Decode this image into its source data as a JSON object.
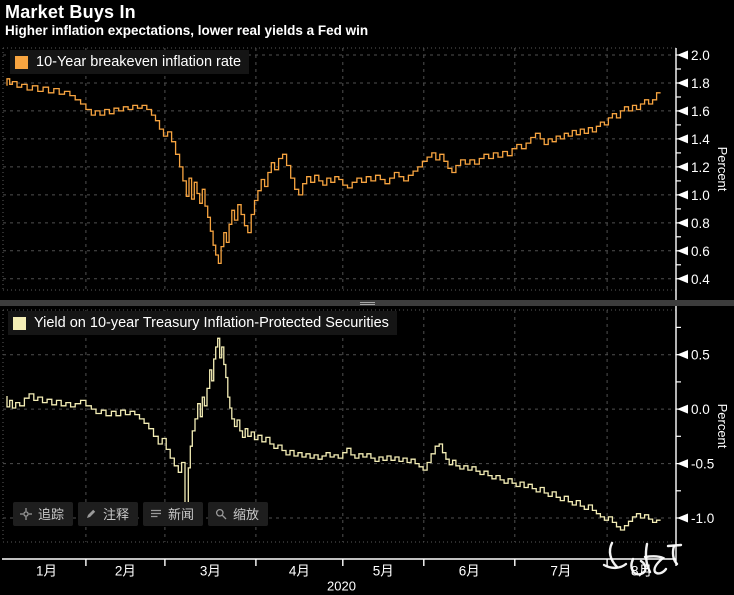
{
  "header": {
    "title": "Market Buys In",
    "subtitle": "Higher inflation expectations, lower real yields a Fed win"
  },
  "toolbar": {
    "items": [
      {
        "icon": "crosshair-icon",
        "label": "追踪"
      },
      {
        "icon": "pencil-icon",
        "label": "注释"
      },
      {
        "icon": "news-lines-icon",
        "label": "新闻"
      },
      {
        "icon": "magnifier-icon",
        "label": "缩放"
      }
    ]
  },
  "x_axis": {
    "month_labels": [
      "1月",
      "2月",
      "3月",
      "4月",
      "5月",
      "6月",
      "7月",
      "8月"
    ],
    "year_label": "2020",
    "month_boundaries_frac": [
      0.118,
      0.236,
      0.372,
      0.502,
      0.623,
      0.759,
      0.897
    ]
  },
  "colors": {
    "breakeven_line": "#F7A440",
    "tips_line": "#F3EDB5",
    "grid": "#4f4f4f",
    "axis": "#ffffff",
    "background": "#000000"
  },
  "annotation": {
    "color": "#ffffff",
    "paths": [
      "M612,543 C608,551 610,560 617,567",
      "M604,565 C611,569 620,569 626,564",
      "M633,559 C629,568 633,576 641,574 C647,572 647,565 641,561",
      "M647,544 C645,554 646,564 650,572",
      "M645,557 C652,556 659,556 663,558 C657,563 653,568 655,572 C658,575 663,573 666,569",
      "M668,546 L681,545",
      "M674,546 C672,553 673,560 677,564"
    ]
  },
  "chart_data": [
    {
      "type": "line",
      "series_name": "10-Year breakeven inflation rate",
      "color": "#F7A440",
      "ylabel": "Percent",
      "ylim": [
        0.32,
        2.05
      ],
      "yticks": [
        0.4,
        0.6,
        0.8,
        1.0,
        1.2,
        1.4,
        1.6,
        1.8,
        2.0
      ],
      "ytick_minor_step": 0.1,
      "x_months": "Jan-Aug 2020",
      "points": [
        [
          0.0,
          1.78
        ],
        [
          0.004,
          1.83
        ],
        [
          0.008,
          1.79
        ],
        [
          0.015,
          1.81
        ],
        [
          0.022,
          1.77
        ],
        [
          0.03,
          1.79
        ],
        [
          0.038,
          1.75
        ],
        [
          0.046,
          1.78
        ],
        [
          0.054,
          1.74
        ],
        [
          0.062,
          1.77
        ],
        [
          0.07,
          1.73
        ],
        [
          0.078,
          1.76
        ],
        [
          0.086,
          1.72
        ],
        [
          0.094,
          1.74
        ],
        [
          0.102,
          1.71
        ],
        [
          0.11,
          1.68
        ],
        [
          0.118,
          1.65
        ],
        [
          0.126,
          1.61
        ],
        [
          0.132,
          1.57
        ],
        [
          0.139,
          1.6
        ],
        [
          0.146,
          1.57
        ],
        [
          0.153,
          1.61
        ],
        [
          0.16,
          1.58
        ],
        [
          0.167,
          1.62
        ],
        [
          0.174,
          1.6
        ],
        [
          0.181,
          1.63
        ],
        [
          0.188,
          1.61
        ],
        [
          0.195,
          1.64
        ],
        [
          0.202,
          1.62
        ],
        [
          0.209,
          1.64
        ],
        [
          0.216,
          1.61
        ],
        [
          0.222,
          1.57
        ],
        [
          0.228,
          1.53
        ],
        [
          0.234,
          1.47
        ],
        [
          0.24,
          1.42
        ],
        [
          0.246,
          1.45
        ],
        [
          0.252,
          1.38
        ],
        [
          0.258,
          1.29
        ],
        [
          0.263,
          1.2
        ],
        [
          0.268,
          1.1
        ],
        [
          0.272,
          0.99
        ],
        [
          0.276,
          1.12
        ],
        [
          0.28,
          0.97
        ],
        [
          0.284,
          1.09
        ],
        [
          0.288,
          1.01
        ],
        [
          0.292,
          0.94
        ],
        [
          0.296,
          1.04
        ],
        [
          0.3,
          0.92
        ],
        [
          0.304,
          0.84
        ],
        [
          0.308,
          0.74
        ],
        [
          0.312,
          0.64
        ],
        [
          0.316,
          0.57
        ],
        [
          0.32,
          0.51
        ],
        [
          0.324,
          0.63
        ],
        [
          0.328,
          0.73
        ],
        [
          0.332,
          0.66
        ],
        [
          0.336,
          0.79
        ],
        [
          0.34,
          0.89
        ],
        [
          0.345,
          0.82
        ],
        [
          0.35,
          0.93
        ],
        [
          0.355,
          0.86
        ],
        [
          0.36,
          0.78
        ],
        [
          0.365,
          0.73
        ],
        [
          0.37,
          0.86
        ],
        [
          0.375,
          0.96
        ],
        [
          0.38,
          1.03
        ],
        [
          0.385,
          1.11
        ],
        [
          0.39,
          1.06
        ],
        [
          0.395,
          1.16
        ],
        [
          0.4,
          1.23
        ],
        [
          0.406,
          1.18
        ],
        [
          0.412,
          1.26
        ],
        [
          0.418,
          1.29
        ],
        [
          0.424,
          1.21
        ],
        [
          0.43,
          1.12
        ],
        [
          0.436,
          1.04
        ],
        [
          0.442,
          1.0
        ],
        [
          0.448,
          1.08
        ],
        [
          0.454,
          1.13
        ],
        [
          0.46,
          1.09
        ],
        [
          0.466,
          1.14
        ],
        [
          0.472,
          1.1
        ],
        [
          0.478,
          1.07
        ],
        [
          0.484,
          1.12
        ],
        [
          0.49,
          1.09
        ],
        [
          0.496,
          1.13
        ],
        [
          0.502,
          1.11
        ],
        [
          0.509,
          1.07
        ],
        [
          0.516,
          1.05
        ],
        [
          0.523,
          1.09
        ],
        [
          0.53,
          1.12
        ],
        [
          0.537,
          1.09
        ],
        [
          0.544,
          1.13
        ],
        [
          0.551,
          1.1
        ],
        [
          0.558,
          1.14
        ],
        [
          0.565,
          1.11
        ],
        [
          0.572,
          1.08
        ],
        [
          0.579,
          1.12
        ],
        [
          0.586,
          1.16
        ],
        [
          0.593,
          1.13
        ],
        [
          0.6,
          1.1
        ],
        [
          0.607,
          1.14
        ],
        [
          0.614,
          1.17
        ],
        [
          0.621,
          1.2
        ],
        [
          0.628,
          1.24
        ],
        [
          0.635,
          1.27
        ],
        [
          0.641,
          1.3
        ],
        [
          0.647,
          1.25
        ],
        [
          0.653,
          1.29
        ],
        [
          0.659,
          1.24
        ],
        [
          0.665,
          1.19
        ],
        [
          0.671,
          1.16
        ],
        [
          0.678,
          1.21
        ],
        [
          0.685,
          1.25
        ],
        [
          0.692,
          1.22
        ],
        [
          0.699,
          1.25
        ],
        [
          0.706,
          1.22
        ],
        [
          0.713,
          1.26
        ],
        [
          0.72,
          1.29
        ],
        [
          0.727,
          1.26
        ],
        [
          0.734,
          1.3
        ],
        [
          0.741,
          1.27
        ],
        [
          0.748,
          1.31
        ],
        [
          0.755,
          1.28
        ],
        [
          0.762,
          1.33
        ],
        [
          0.769,
          1.36
        ],
        [
          0.776,
          1.33
        ],
        [
          0.783,
          1.37
        ],
        [
          0.79,
          1.41
        ],
        [
          0.797,
          1.44
        ],
        [
          0.803,
          1.4
        ],
        [
          0.809,
          1.36
        ],
        [
          0.815,
          1.4
        ],
        [
          0.821,
          1.38
        ],
        [
          0.827,
          1.42
        ],
        [
          0.833,
          1.4
        ],
        [
          0.839,
          1.44
        ],
        [
          0.845,
          1.42
        ],
        [
          0.851,
          1.46
        ],
        [
          0.857,
          1.43
        ],
        [
          0.863,
          1.47
        ],
        [
          0.869,
          1.44
        ],
        [
          0.875,
          1.48
        ],
        [
          0.881,
          1.45
        ],
        [
          0.887,
          1.49
        ],
        [
          0.893,
          1.52
        ],
        [
          0.899,
          1.5
        ],
        [
          0.905,
          1.55
        ],
        [
          0.911,
          1.58
        ],
        [
          0.917,
          1.55
        ],
        [
          0.923,
          1.6
        ],
        [
          0.929,
          1.63
        ],
        [
          0.935,
          1.6
        ],
        [
          0.941,
          1.64
        ],
        [
          0.947,
          1.61
        ],
        [
          0.953,
          1.65
        ],
        [
          0.959,
          1.68
        ],
        [
          0.965,
          1.65
        ],
        [
          0.971,
          1.68
        ],
        [
          0.977,
          1.73
        ]
      ]
    },
    {
      "type": "line",
      "series_name": "Yield on 10-year Treasury Inflation-Protected Securities",
      "color": "#F3EDB5",
      "ylabel": "Percent",
      "ylim": [
        -1.22,
        0.91
      ],
      "yticks": [
        -1.0,
        -0.5,
        0.0,
        0.5
      ],
      "ytick_minor_step": 0.25,
      "x_months": "Jan-Aug 2020",
      "points": [
        [
          0.0,
          0.12
        ],
        [
          0.004,
          0.02
        ],
        [
          0.008,
          0.08
        ],
        [
          0.013,
          0.01
        ],
        [
          0.019,
          0.06
        ],
        [
          0.026,
          0.03
        ],
        [
          0.033,
          0.1
        ],
        [
          0.04,
          0.14
        ],
        [
          0.046,
          0.08
        ],
        [
          0.053,
          0.11
        ],
        [
          0.06,
          0.06
        ],
        [
          0.067,
          0.09
        ],
        [
          0.074,
          0.04
        ],
        [
          0.081,
          0.08
        ],
        [
          0.088,
          0.03
        ],
        [
          0.095,
          0.06
        ],
        [
          0.102,
          0.02
        ],
        [
          0.11,
          0.05
        ],
        [
          0.118,
          0.08
        ],
        [
          0.126,
          0.03
        ],
        [
          0.133,
          0.0
        ],
        [
          0.141,
          -0.04
        ],
        [
          0.148,
          -0.01
        ],
        [
          0.156,
          -0.06
        ],
        [
          0.163,
          -0.02
        ],
        [
          0.17,
          -0.06
        ],
        [
          0.177,
          -0.01
        ],
        [
          0.184,
          -0.05
        ],
        [
          0.191,
          -0.02
        ],
        [
          0.198,
          -0.05
        ],
        [
          0.205,
          -0.09
        ],
        [
          0.212,
          -0.13
        ],
        [
          0.219,
          -0.18
        ],
        [
          0.226,
          -0.25
        ],
        [
          0.232,
          -0.32
        ],
        [
          0.238,
          -0.27
        ],
        [
          0.244,
          -0.37
        ],
        [
          0.25,
          -0.45
        ],
        [
          0.256,
          -0.52
        ],
        [
          0.261,
          -0.58
        ],
        [
          0.266,
          -0.49
        ],
        [
          0.271,
          -1.05
        ],
        [
          0.274,
          -0.54
        ],
        [
          0.277,
          -0.34
        ],
        [
          0.281,
          -0.2
        ],
        [
          0.285,
          -0.09
        ],
        [
          0.289,
          0.05
        ],
        [
          0.292,
          -0.07
        ],
        [
          0.295,
          0.11
        ],
        [
          0.299,
          0.03
        ],
        [
          0.303,
          0.19
        ],
        [
          0.306,
          0.36
        ],
        [
          0.309,
          0.26
        ],
        [
          0.312,
          0.46
        ],
        [
          0.315,
          0.57
        ],
        [
          0.318,
          0.65
        ],
        [
          0.321,
          0.47
        ],
        [
          0.324,
          0.57
        ],
        [
          0.327,
          0.41
        ],
        [
          0.33,
          0.29
        ],
        [
          0.333,
          0.11
        ],
        [
          0.336,
          0.01
        ],
        [
          0.34,
          -0.09
        ],
        [
          0.344,
          -0.16
        ],
        [
          0.348,
          -0.1
        ],
        [
          0.352,
          -0.2
        ],
        [
          0.356,
          -0.26
        ],
        [
          0.36,
          -0.18
        ],
        [
          0.365,
          -0.25
        ],
        [
          0.37,
          -0.21
        ],
        [
          0.375,
          -0.28
        ],
        [
          0.381,
          -0.24
        ],
        [
          0.387,
          -0.3
        ],
        [
          0.393,
          -0.26
        ],
        [
          0.399,
          -0.32
        ],
        [
          0.405,
          -0.36
        ],
        [
          0.411,
          -0.33
        ],
        [
          0.417,
          -0.38
        ],
        [
          0.423,
          -0.42
        ],
        [
          0.429,
          -0.38
        ],
        [
          0.435,
          -0.43
        ],
        [
          0.441,
          -0.4
        ],
        [
          0.447,
          -0.44
        ],
        [
          0.453,
          -0.41
        ],
        [
          0.459,
          -0.45
        ],
        [
          0.465,
          -0.42
        ],
        [
          0.471,
          -0.46
        ],
        [
          0.477,
          -0.43
        ],
        [
          0.483,
          -0.4
        ],
        [
          0.489,
          -0.44
        ],
        [
          0.495,
          -0.42
        ],
        [
          0.502,
          -0.45
        ],
        [
          0.508,
          -0.4
        ],
        [
          0.514,
          -0.36
        ],
        [
          0.52,
          -0.42
        ],
        [
          0.526,
          -0.45
        ],
        [
          0.532,
          -0.41
        ],
        [
          0.538,
          -0.44
        ],
        [
          0.544,
          -0.41
        ],
        [
          0.55,
          -0.45
        ],
        [
          0.556,
          -0.48
        ],
        [
          0.562,
          -0.44
        ],
        [
          0.568,
          -0.47
        ],
        [
          0.574,
          -0.43
        ],
        [
          0.58,
          -0.47
        ],
        [
          0.586,
          -0.44
        ],
        [
          0.592,
          -0.48
        ],
        [
          0.598,
          -0.45
        ],
        [
          0.604,
          -0.49
        ],
        [
          0.61,
          -0.46
        ],
        [
          0.616,
          -0.5
        ],
        [
          0.622,
          -0.53
        ],
        [
          0.628,
          -0.56
        ],
        [
          0.634,
          -0.49
        ],
        [
          0.64,
          -0.41
        ],
        [
          0.646,
          -0.34
        ],
        [
          0.651,
          -0.32
        ],
        [
          0.656,
          -0.4
        ],
        [
          0.661,
          -0.46
        ],
        [
          0.666,
          -0.51
        ],
        [
          0.671,
          -0.47
        ],
        [
          0.677,
          -0.52
        ],
        [
          0.683,
          -0.55
        ],
        [
          0.689,
          -0.52
        ],
        [
          0.695,
          -0.56
        ],
        [
          0.701,
          -0.53
        ],
        [
          0.707,
          -0.57
        ],
        [
          0.713,
          -0.6
        ],
        [
          0.719,
          -0.57
        ],
        [
          0.725,
          -0.61
        ],
        [
          0.731,
          -0.64
        ],
        [
          0.737,
          -0.61
        ],
        [
          0.743,
          -0.65
        ],
        [
          0.749,
          -0.68
        ],
        [
          0.755,
          -0.64
        ],
        [
          0.761,
          -0.68
        ],
        [
          0.767,
          -0.71
        ],
        [
          0.773,
          -0.67
        ],
        [
          0.779,
          -0.72
        ],
        [
          0.785,
          -0.69
        ],
        [
          0.791,
          -0.73
        ],
        [
          0.797,
          -0.76
        ],
        [
          0.803,
          -0.72
        ],
        [
          0.809,
          -0.77
        ],
        [
          0.815,
          -0.8
        ],
        [
          0.821,
          -0.76
        ],
        [
          0.827,
          -0.81
        ],
        [
          0.833,
          -0.84
        ],
        [
          0.839,
          -0.8
        ],
        [
          0.845,
          -0.85
        ],
        [
          0.851,
          -0.88
        ],
        [
          0.857,
          -0.84
        ],
        [
          0.863,
          -0.89
        ],
        [
          0.869,
          -0.92
        ],
        [
          0.875,
          -0.88
        ],
        [
          0.881,
          -0.93
        ],
        [
          0.887,
          -0.96
        ],
        [
          0.893,
          -0.99
        ],
        [
          0.899,
          -1.02
        ],
        [
          0.905,
          -0.99
        ],
        [
          0.911,
          -1.04
        ],
        [
          0.917,
          -1.08
        ],
        [
          0.923,
          -1.11
        ],
        [
          0.929,
          -1.07
        ],
        [
          0.935,
          -1.03
        ],
        [
          0.941,
          -0.99
        ],
        [
          0.947,
          -0.96
        ],
        [
          0.953,
          -1.0
        ],
        [
          0.959,
          -0.97
        ],
        [
          0.965,
          -1.01
        ],
        [
          0.971,
          -1.04
        ],
        [
          0.977,
          -1.02
        ]
      ]
    }
  ]
}
